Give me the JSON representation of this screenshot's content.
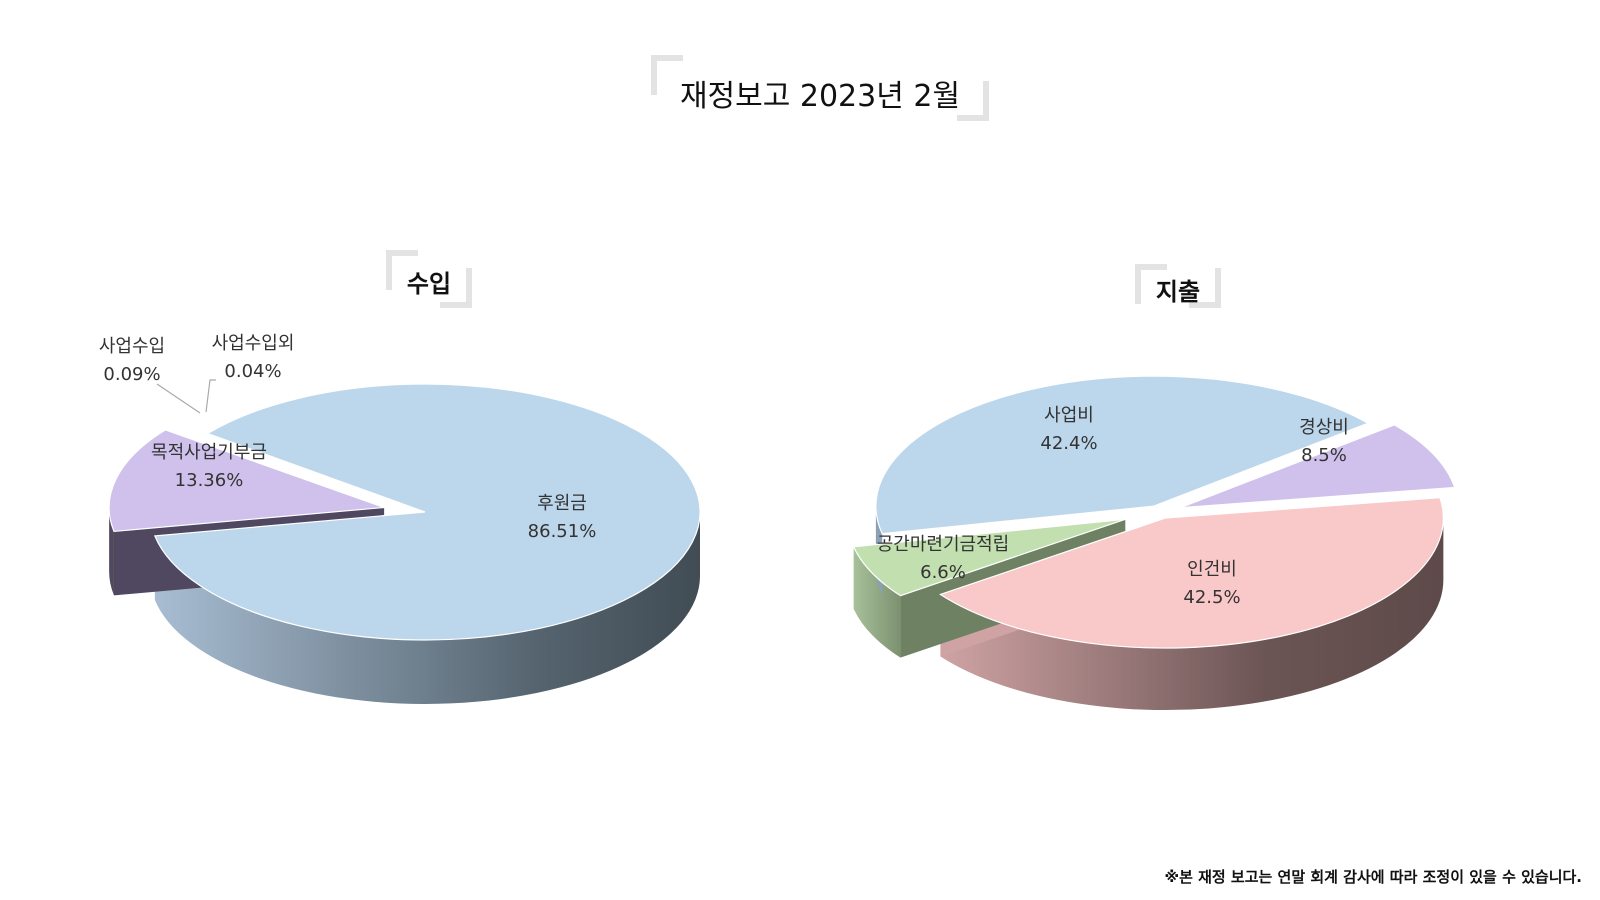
{
  "page": {
    "title": "재정보고 2023년 2월",
    "footnote": "※본 재정 보고는 연말 회계 감사에 따라 조정이 있을 수 있습니다."
  },
  "chart_data": [
    {
      "type": "pie",
      "title": "수입",
      "slices": [
        {
          "label": "후원금",
          "value": 86.51,
          "value_label": "86.51%",
          "color": "#bcd6eb"
        },
        {
          "label": "목적사업기부금",
          "value": 13.36,
          "value_label": "13.36%",
          "color": "#cfc1ec"
        },
        {
          "label": "사업수입",
          "value": 0.09,
          "value_label": "0.09%",
          "color": "#4a4a4a"
        },
        {
          "label": "사업수입외",
          "value": 0.04,
          "value_label": "0.04%",
          "color": "#4a4a4a"
        }
      ]
    },
    {
      "type": "pie",
      "title": "지출",
      "slices": [
        {
          "label": "인건비",
          "value": 42.5,
          "value_label": "42.5%",
          "color": "#f9c8c9"
        },
        {
          "label": "공간마련기금적립",
          "value": 6.6,
          "value_label": "6.6%",
          "color": "#c2dfb0"
        },
        {
          "label": "사업비",
          "value": 42.4,
          "value_label": "42.4%",
          "color": "#bcd6eb"
        },
        {
          "label": "경상비",
          "value": 8.5,
          "value_label": "8.5%",
          "color": "#cfc1ec"
        }
      ]
    }
  ]
}
